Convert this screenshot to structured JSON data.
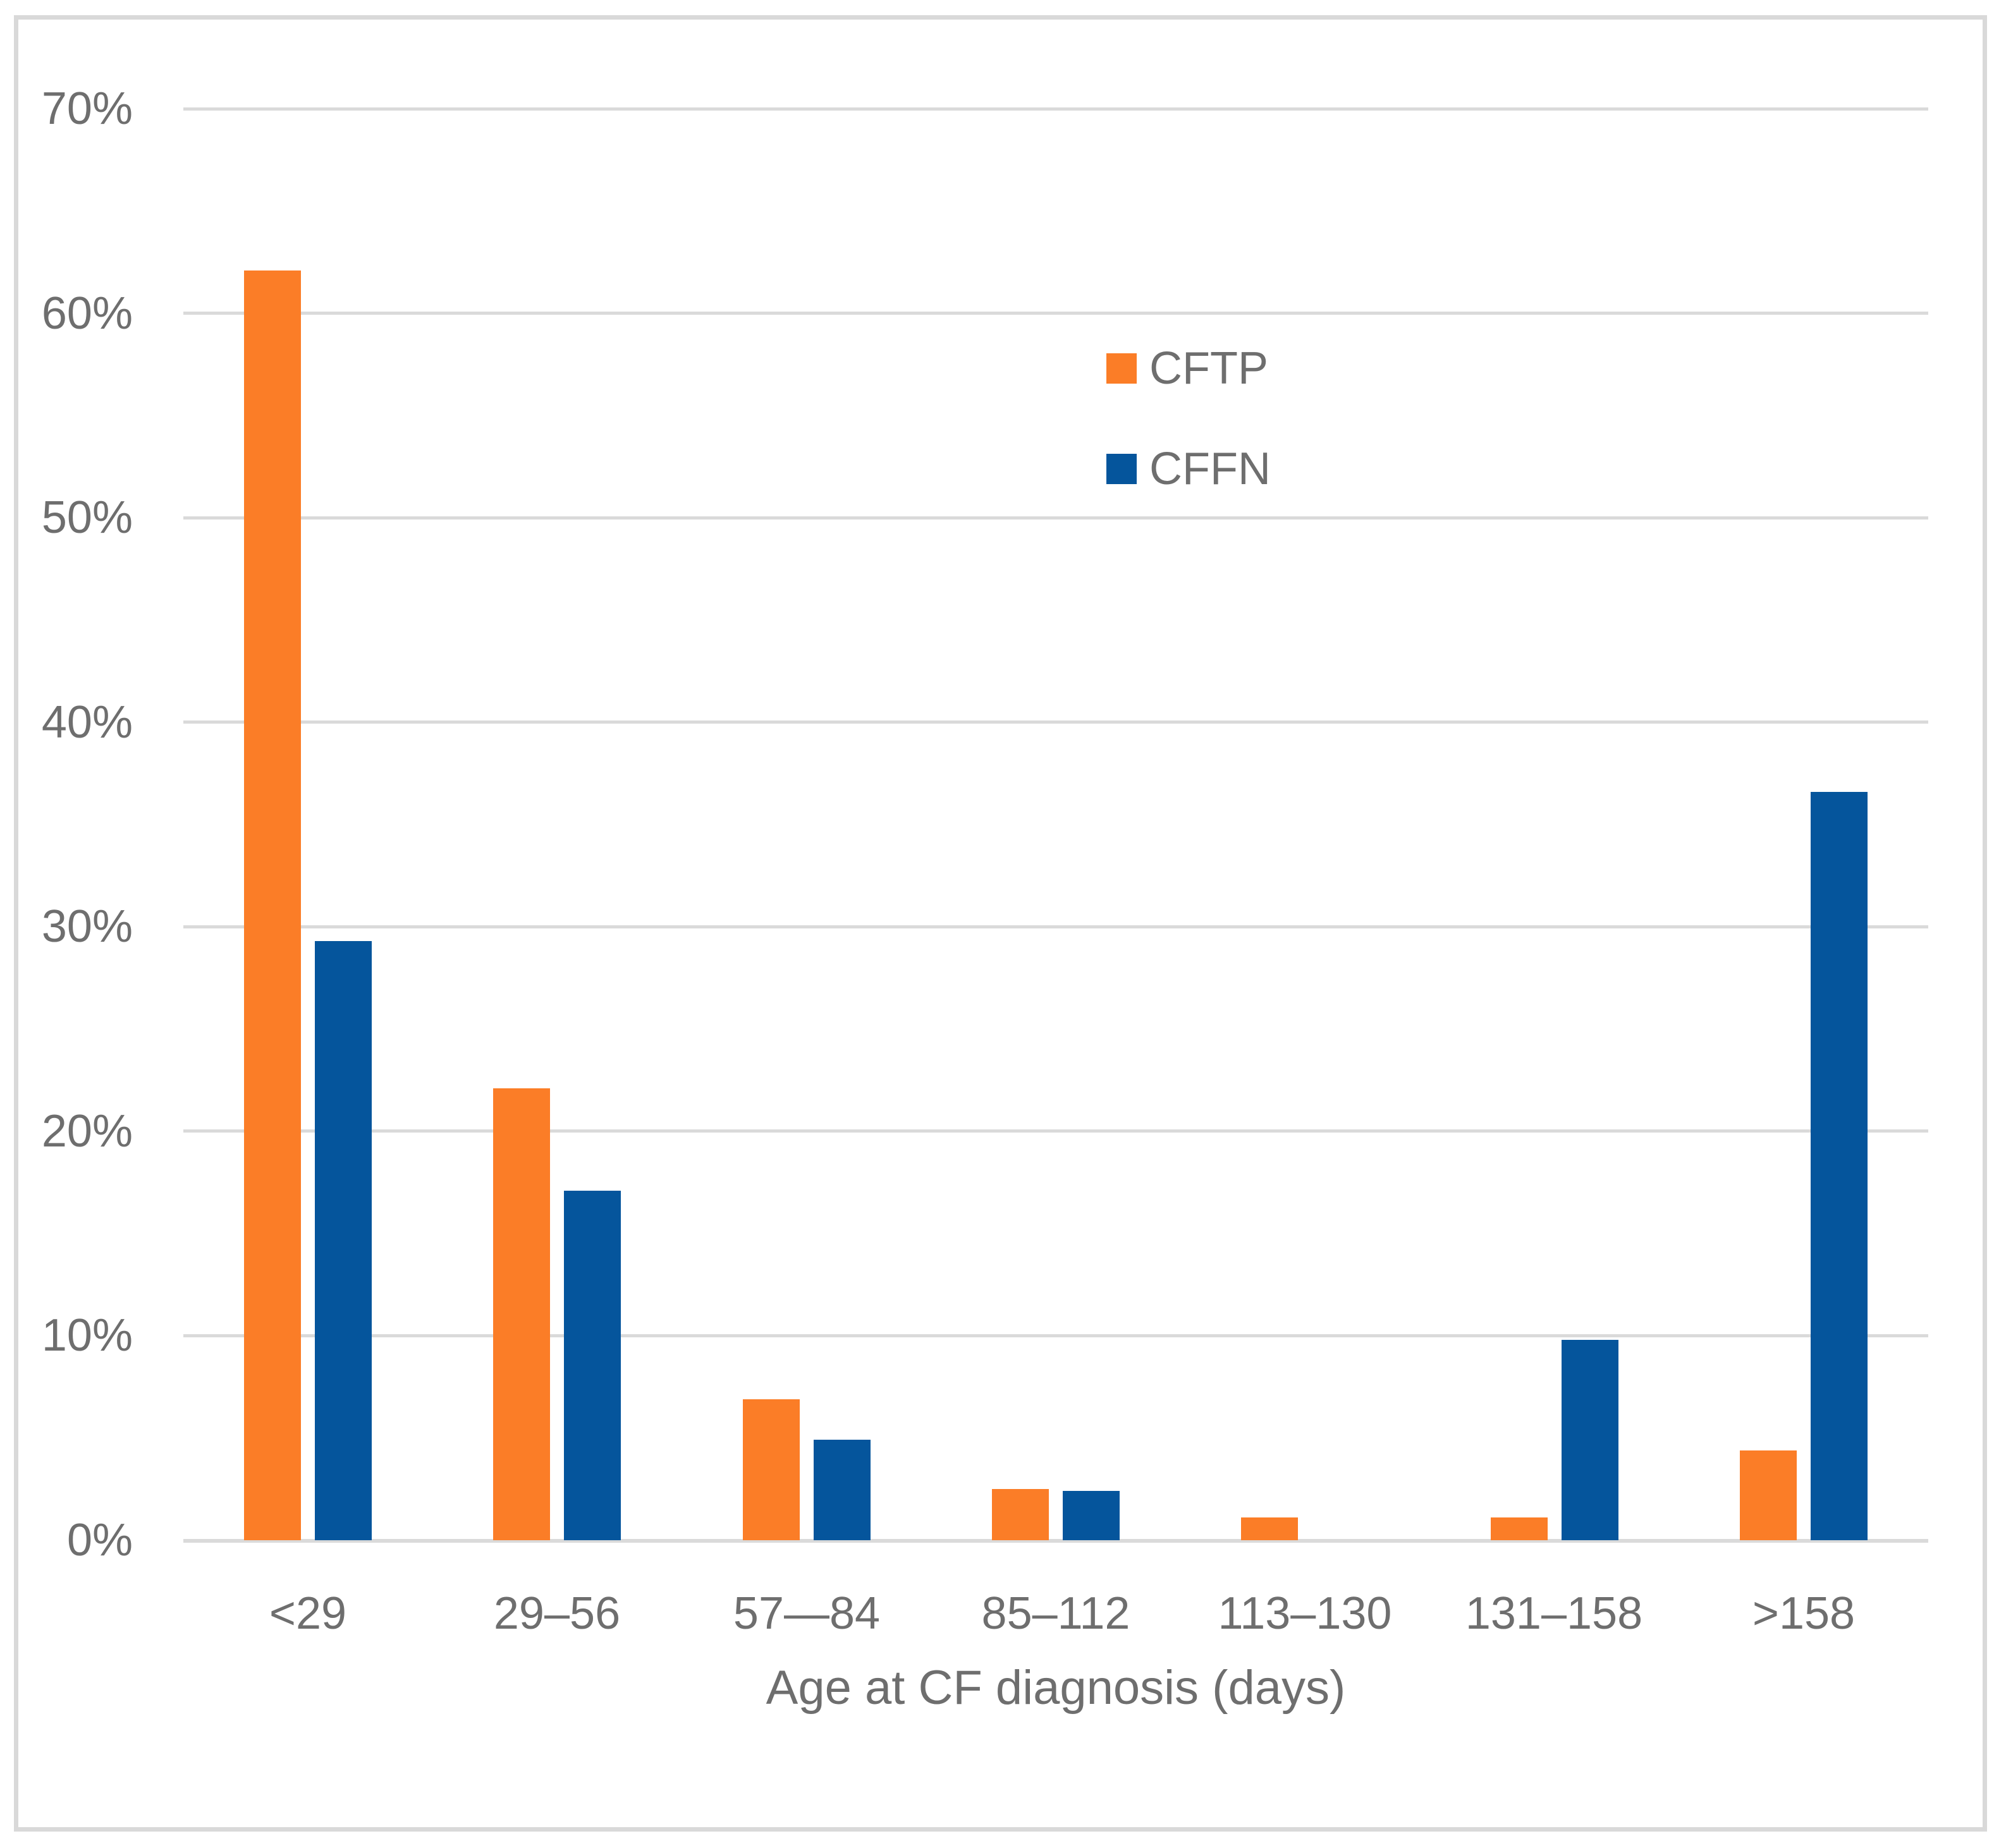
{
  "chart_data": {
    "type": "bar",
    "categories": [
      "<29",
      "29–56",
      "57—84",
      "85–112",
      "113–130",
      "131–158",
      ">158"
    ],
    "series": [
      {
        "name": "CFTP",
        "color": "#FB7D27",
        "values": [
          62.1,
          22.1,
          6.9,
          2.5,
          1.1,
          1.1,
          4.4
        ]
      },
      {
        "name": "CFFN",
        "color": "#05559C",
        "values": [
          29.3,
          17.1,
          4.9,
          2.4,
          0,
          9.8,
          36.6
        ]
      }
    ],
    "title": "",
    "xlabel": "Age at CF diagnosis (days)",
    "ylabel": "",
    "ylim": [
      0,
      70
    ],
    "yticks": [
      "70%",
      "60%",
      "50%",
      "40%",
      "30%",
      "20%",
      "10%",
      "0%"
    ],
    "grid": "horizontal",
    "legend_position": "upper-middle"
  },
  "colors": {
    "gridline": "#DADADA",
    "border": "#D9D9D9",
    "text": "#6E6E6E",
    "background": "#FFFFFF"
  }
}
